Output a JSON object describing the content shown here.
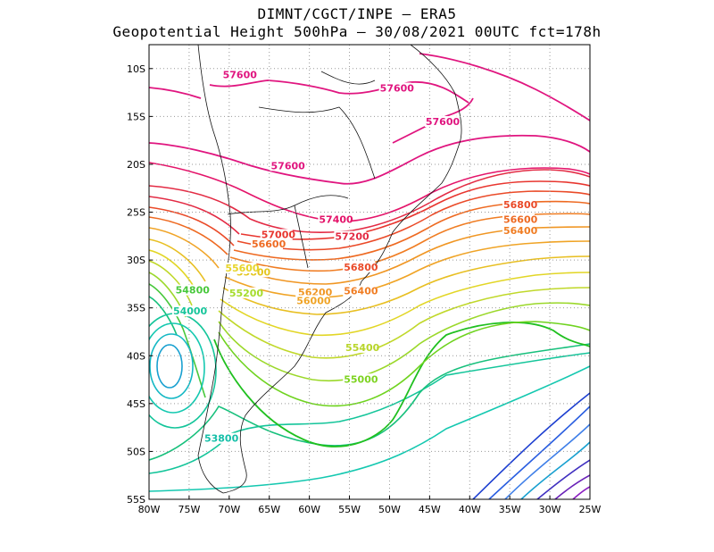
{
  "header": {
    "line1": "DIMNT/CGCT/INPE –  ERA5",
    "line2": "Geopotential Height 500hPa –  30/08/2021 00UTC fct=178h"
  },
  "map": {
    "lon_range": [
      -80,
      -25
    ],
    "lat_range": [
      -55,
      -7.5
    ],
    "x_ticks": [
      "80W",
      "75W",
      "70W",
      "65W",
      "60W",
      "55W",
      "50W",
      "45W",
      "40W",
      "35W",
      "30W",
      "25W"
    ],
    "y_ticks": [
      "10S",
      "15S",
      "20S",
      "25S",
      "30S",
      "35S",
      "40S",
      "45S",
      "50S",
      "55S"
    ],
    "grid": "dotted"
  },
  "contour_labels": [
    {
      "text": "57600",
      "lon": -70.8,
      "lat": -11.0,
      "color": "#e0157f"
    },
    {
      "text": "57600",
      "lon": -51.2,
      "lat": -12.4,
      "color": "#e0157f"
    },
    {
      "text": "57600",
      "lon": -45.5,
      "lat": -15.9,
      "color": "#e0157f"
    },
    {
      "text": "57600",
      "lon": -64.8,
      "lat": -20.5,
      "color": "#e0157f"
    },
    {
      "text": "57400",
      "lon": -58.8,
      "lat": -26.1,
      "color": "#e4146a"
    },
    {
      "text": "57200",
      "lon": -56.8,
      "lat": -27.9,
      "color": "#e32b44"
    },
    {
      "text": "57000",
      "lon": -66.0,
      "lat": -27.7,
      "color": "#e8362f"
    },
    {
      "text": "56800",
      "lon": -35.8,
      "lat": -24.6,
      "color": "#ea4a28"
    },
    {
      "text": "56800",
      "lon": -55.7,
      "lat": -31.1,
      "color": "#ea4a28"
    },
    {
      "text": "56600",
      "lon": -67.2,
      "lat": -28.7,
      "color": "#ee6a22"
    },
    {
      "text": "56600",
      "lon": -35.8,
      "lat": -26.1,
      "color": "#ee6a22"
    },
    {
      "text": "56400",
      "lon": -35.8,
      "lat": -27.3,
      "color": "#f07d23"
    },
    {
      "text": "56400",
      "lon": -55.7,
      "lat": -33.6,
      "color": "#f07d23"
    },
    {
      "text": "56200",
      "lon": -61.4,
      "lat": -33.7,
      "color": "#f09623"
    },
    {
      "text": "56000",
      "lon": -61.6,
      "lat": -34.6,
      "color": "#f0a426"
    },
    {
      "text": "55800",
      "lon": -69.1,
      "lat": -31.6,
      "color": "#e4c61f"
    },
    {
      "text": "55600",
      "lon": -70.5,
      "lat": -31.2,
      "color": "#e7d52a"
    },
    {
      "text": "55400",
      "lon": -55.5,
      "lat": -39.5,
      "color": "#b8d52a"
    },
    {
      "text": "55200",
      "lon": -70.0,
      "lat": -33.8,
      "color": "#a6dc2c"
    },
    {
      "text": "55000",
      "lon": -55.7,
      "lat": -42.8,
      "color": "#7ed321"
    },
    {
      "text": "54800",
      "lon": -76.7,
      "lat": -33.5,
      "color": "#48c83c"
    },
    {
      "text": "54000",
      "lon": -77.0,
      "lat": -35.7,
      "color": "#16c59a"
    },
    {
      "text": "53800",
      "lon": -73.1,
      "lat": -49.0,
      "color": "#14bfa8"
    }
  ]
}
